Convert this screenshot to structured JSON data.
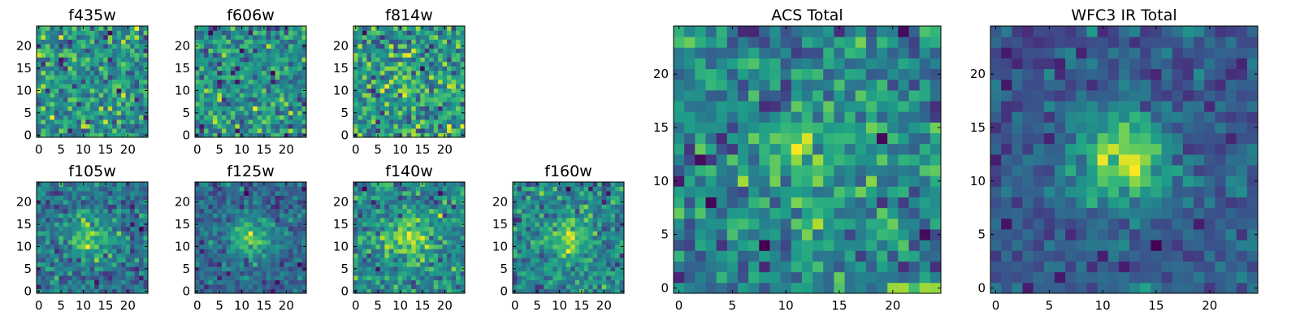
{
  "chart_data": [
    {
      "type": "heatmap",
      "title": "f435w",
      "colormap": "viridis",
      "image_size": [
        25,
        25
      ],
      "xlim": [
        -0.5,
        24.5
      ],
      "ylim": [
        -0.5,
        24.5
      ],
      "xticks": [
        0,
        5,
        10,
        15,
        20
      ],
      "yticks": [
        0,
        5,
        10,
        15,
        20
      ],
      "central_source": 0.0,
      "noise_level": 0.9,
      "seed": 11
    },
    {
      "type": "heatmap",
      "title": "f606w",
      "colormap": "viridis",
      "image_size": [
        25,
        25
      ],
      "xlim": [
        -0.5,
        24.5
      ],
      "ylim": [
        -0.5,
        24.5
      ],
      "xticks": [
        0,
        5,
        10,
        15,
        20
      ],
      "yticks": [
        0,
        5,
        10,
        15,
        20
      ],
      "central_source": 0.0,
      "noise_level": 1.0,
      "seed": 23
    },
    {
      "type": "heatmap",
      "title": "f814w",
      "colormap": "viridis",
      "image_size": [
        25,
        25
      ],
      "xlim": [
        -0.5,
        24.5
      ],
      "ylim": [
        -0.5,
        24.5
      ],
      "xticks": [
        0,
        5,
        10,
        15,
        20
      ],
      "yticks": [
        0,
        5,
        10,
        15,
        20
      ],
      "central_source": 0.1,
      "noise_level": 0.9,
      "seed": 37
    },
    {
      "type": "heatmap",
      "title": "f105w",
      "colormap": "viridis",
      "image_size": [
        25,
        25
      ],
      "xlim": [
        -0.5,
        24.5
      ],
      "ylim": [
        -0.5,
        24.5
      ],
      "xticks": [
        0,
        5,
        10,
        15,
        20
      ],
      "yticks": [
        0,
        5,
        10,
        15,
        20
      ],
      "central_source": 0.6,
      "noise_level": 0.55,
      "seed": 41
    },
    {
      "type": "heatmap",
      "title": "f125w",
      "colormap": "viridis",
      "image_size": [
        25,
        25
      ],
      "xlim": [
        -0.5,
        24.5
      ],
      "ylim": [
        -0.5,
        24.5
      ],
      "xticks": [
        0,
        5,
        10,
        15,
        20
      ],
      "yticks": [
        0,
        5,
        10,
        15,
        20
      ],
      "central_source": 0.7,
      "noise_level": 0.5,
      "seed": 53
    },
    {
      "type": "heatmap",
      "title": "f140w",
      "colormap": "viridis",
      "image_size": [
        25,
        25
      ],
      "xlim": [
        -0.5,
        24.5
      ],
      "ylim": [
        -0.5,
        24.5
      ],
      "xticks": [
        0,
        5,
        10,
        15,
        20
      ],
      "yticks": [
        0,
        5,
        10,
        15,
        20
      ],
      "central_source": 0.55,
      "noise_level": 0.55,
      "seed": 67
    },
    {
      "type": "heatmap",
      "title": "f160w",
      "colormap": "viridis",
      "image_size": [
        25,
        25
      ],
      "xlim": [
        -0.5,
        24.5
      ],
      "ylim": [
        -0.5,
        24.5
      ],
      "xticks": [
        0,
        5,
        10,
        15,
        20
      ],
      "yticks": [
        0,
        5,
        10,
        15,
        20
      ],
      "central_source": 0.6,
      "noise_level": 0.55,
      "seed": 71
    },
    {
      "type": "heatmap",
      "title": "ACS Total",
      "colormap": "viridis",
      "image_size": [
        25,
        25
      ],
      "xlim": [
        -0.5,
        24.5
      ],
      "ylim": [
        -0.5,
        24.5
      ],
      "xticks": [
        0,
        5,
        10,
        15,
        20
      ],
      "yticks": [
        0,
        5,
        10,
        15,
        20
      ],
      "central_source": 0.35,
      "noise_level": 0.6,
      "seed": 83
    },
    {
      "type": "heatmap",
      "title": "WFC3 IR Total",
      "colormap": "viridis",
      "image_size": [
        25,
        25
      ],
      "xlim": [
        -0.5,
        24.5
      ],
      "ylim": [
        -0.5,
        24.5
      ],
      "xticks": [
        0,
        5,
        10,
        15,
        20
      ],
      "yticks": [
        0,
        5,
        10,
        15,
        20
      ],
      "central_source": 0.9,
      "noise_level": 0.4,
      "seed": 97
    }
  ]
}
